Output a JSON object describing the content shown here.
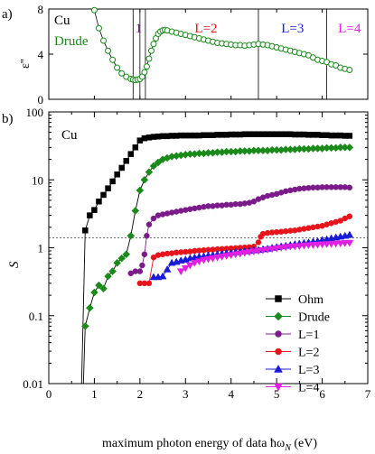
{
  "chart_data": [
    {
      "panel_label": "a)",
      "type": "line",
      "material_label": "Cu",
      "legend": [
        "Drude"
      ],
      "ylabel": "ε''",
      "xlim": [
        0,
        7
      ],
      "ylim": [
        0,
        8
      ],
      "yticks": [
        "0",
        "4",
        "8"
      ],
      "series": [
        {
          "name": "Drude",
          "color": "#1a8a1a",
          "x": [
            1.0,
            1.1,
            1.2,
            1.3,
            1.4,
            1.5,
            1.6,
            1.7,
            1.8,
            1.85,
            1.9,
            1.95,
            2.0,
            2.05,
            2.1,
            2.15,
            2.2,
            2.25,
            2.3,
            2.35,
            2.4,
            2.45,
            2.5,
            2.55,
            2.6,
            2.7,
            2.8,
            2.9,
            3.0,
            3.1,
            3.2,
            3.3,
            3.4,
            3.5,
            3.6,
            3.7,
            3.8,
            3.9,
            4.0,
            4.1,
            4.2,
            4.3,
            4.4,
            4.5,
            4.6,
            4.7,
            4.8,
            4.9,
            5.0,
            5.1,
            5.2,
            5.3,
            5.4,
            5.5,
            5.6,
            5.7,
            5.8,
            5.9,
            6.0,
            6.1,
            6.2,
            6.3,
            6.4,
            6.5,
            6.6
          ],
          "y": [
            7.9,
            6.3,
            5.2,
            4.3,
            3.5,
            2.8,
            2.3,
            2.0,
            1.8,
            1.75,
            1.7,
            1.75,
            1.8,
            2.0,
            2.4,
            2.9,
            3.6,
            4.3,
            4.9,
            5.4,
            5.8,
            6.0,
            6.1,
            6.15,
            6.1,
            6.0,
            5.9,
            5.8,
            5.7,
            5.6,
            5.5,
            5.4,
            5.3,
            5.2,
            5.1,
            5.0,
            4.95,
            4.9,
            4.85,
            4.8,
            4.8,
            4.75,
            4.8,
            4.85,
            4.9,
            4.85,
            4.8,
            4.7,
            4.6,
            4.5,
            4.4,
            4.3,
            4.2,
            4.1,
            4.0,
            3.9,
            3.7,
            3.5,
            3.4,
            3.3,
            3.1,
            3.0,
            2.8,
            2.7,
            2.6
          ]
        }
      ],
      "vlines": [
        1.85,
        2.0,
        2.12,
        4.6,
        6.1
      ],
      "region_labels": [
        {
          "text": "1",
          "x": 1.97,
          "color": "#7b1b8a"
        },
        {
          "text": "L=2",
          "x": 3.45,
          "color": "#e8141c"
        },
        {
          "text": "L=3",
          "x": 5.35,
          "color": "#1a1adb"
        },
        {
          "text": "L=4",
          "x": 6.6,
          "color": "#e020e0"
        }
      ]
    },
    {
      "panel_label": "b)",
      "type": "line",
      "material_label": "Cu",
      "xlabel": "maximum photon energy of data ħω",
      "xlabel_sub": "N",
      "xlabel_unit": " (eV)",
      "ylabel": "S",
      "xlim": [
        0,
        7
      ],
      "ylim": [
        0.01,
        100
      ],
      "yscale": "log",
      "xticks": [
        "0",
        "1",
        "2",
        "3",
        "4",
        "5",
        "6",
        "7"
      ],
      "yticks": [
        "0.01",
        "0.1",
        "1",
        "10",
        "100"
      ],
      "hline": 1.4,
      "legend_position": "bottom-right",
      "series": [
        {
          "name": "Ohm",
          "color": "#000000",
          "marker": "square",
          "x": [
            0.8,
            0.9,
            1.0,
            1.1,
            1.2,
            1.3,
            1.4,
            1.5,
            1.6,
            1.7,
            1.8,
            1.9,
            2.0,
            2.1,
            2.2,
            2.3,
            2.4,
            2.5,
            2.6,
            2.7,
            2.8,
            2.9,
            3.0,
            3.1,
            3.2,
            3.3,
            3.4,
            3.5,
            3.6,
            3.7,
            3.8,
            3.9,
            4.0,
            4.1,
            4.2,
            4.3,
            4.4,
            4.5,
            4.6,
            4.7,
            4.8,
            4.9,
            5.0,
            5.1,
            5.2,
            5.3,
            5.4,
            5.5,
            5.6,
            5.7,
            5.8,
            5.9,
            6.0,
            6.1,
            6.2,
            6.3,
            6.4,
            6.5,
            6.6
          ],
          "y": [
            1.8,
            3.0,
            3.6,
            4.8,
            6.0,
            7.5,
            9.5,
            12.0,
            15.0,
            19.0,
            24.0,
            30.0,
            38.0,
            41.0,
            42.0,
            43.0,
            43.5,
            44.0,
            44.0,
            44.5,
            44.5,
            45.0,
            45.0,
            45.0,
            45.0,
            45.0,
            45.5,
            45.5,
            45.5,
            46.0,
            46.0,
            46.0,
            46.5,
            46.5,
            46.5,
            47.0,
            47.0,
            47.0,
            47.0,
            47.0,
            47.0,
            47.0,
            47.0,
            47.0,
            47.0,
            47.0,
            46.5,
            46.5,
            46.5,
            46.0,
            46.0,
            46.0,
            45.5,
            45.5,
            45.0,
            45.0,
            45.0,
            44.5,
            44.5
          ]
        },
        {
          "name": "Drude",
          "color": "#1a8a1a",
          "marker": "diamond",
          "x": [
            0.8,
            0.9,
            1.0,
            1.1,
            1.2,
            1.3,
            1.4,
            1.5,
            1.6,
            1.7,
            1.8,
            1.9,
            2.0,
            2.1,
            2.2,
            2.3,
            2.4,
            2.5,
            2.6,
            2.7,
            2.8,
            2.9,
            3.0,
            3.1,
            3.2,
            3.3,
            3.4,
            3.5,
            3.6,
            3.7,
            3.8,
            3.9,
            4.0,
            4.1,
            4.2,
            4.3,
            4.4,
            4.5,
            4.6,
            4.7,
            4.8,
            4.9,
            5.0,
            5.1,
            5.2,
            5.3,
            5.4,
            5.5,
            5.6,
            5.7,
            5.8,
            5.9,
            6.0,
            6.1,
            6.2,
            6.3,
            6.4,
            6.5,
            6.6
          ],
          "y": [
            0.07,
            0.13,
            0.22,
            0.28,
            0.25,
            0.38,
            0.45,
            0.6,
            0.7,
            0.8,
            1.5,
            3.5,
            7.0,
            10.0,
            13.0,
            16.0,
            18.0,
            20.0,
            21.0,
            22.0,
            22.5,
            23.0,
            23.5,
            24.0,
            24.0,
            24.5,
            24.5,
            25.0,
            25.0,
            25.5,
            25.5,
            26.0,
            26.0,
            26.0,
            26.5,
            26.5,
            26.5,
            27.0,
            27.0,
            27.0,
            27.0,
            27.5,
            27.5,
            27.5,
            28.0,
            28.0,
            28.0,
            28.5,
            28.5,
            28.5,
            29.0,
            29.0,
            29.0,
            29.5,
            29.5,
            29.5,
            30.0,
            30.0,
            30.0
          ]
        },
        {
          "name": "L=1",
          "color": "#7b1b8a",
          "marker": "circle",
          "x": [
            1.8,
            1.9,
            2.0,
            2.05,
            2.1,
            2.15,
            2.2,
            2.3,
            2.4,
            2.5,
            2.6,
            2.7,
            2.8,
            2.9,
            3.0,
            3.1,
            3.2,
            3.3,
            3.4,
            3.5,
            3.6,
            3.7,
            3.8,
            3.9,
            4.0,
            4.1,
            4.2,
            4.3,
            4.4,
            4.5,
            4.6,
            4.7,
            4.8,
            4.9,
            5.0,
            5.1,
            5.2,
            5.3,
            5.4,
            5.5,
            5.6,
            5.7,
            5.8,
            5.9,
            6.0,
            6.1,
            6.2,
            6.3,
            6.4,
            6.5,
            6.6
          ],
          "y": [
            0.42,
            0.45,
            0.45,
            0.55,
            0.8,
            1.5,
            2.2,
            2.7,
            3.0,
            3.1,
            3.2,
            3.3,
            3.4,
            3.5,
            3.6,
            3.7,
            3.8,
            3.9,
            4.0,
            4.1,
            4.1,
            4.2,
            4.2,
            4.3,
            4.3,
            4.4,
            4.4,
            4.5,
            4.6,
            4.8,
            5.2,
            5.5,
            5.8,
            6.0,
            6.2,
            6.5,
            6.8,
            7.0,
            7.2,
            7.4,
            7.5,
            7.6,
            7.7,
            7.7,
            7.8,
            7.8,
            7.8,
            7.8,
            7.8,
            7.8,
            7.7
          ]
        },
        {
          "name": "L=2",
          "color": "#e8141c",
          "marker": "circle",
          "x": [
            2.0,
            2.1,
            2.2,
            2.3,
            2.4,
            2.5,
            2.6,
            2.7,
            2.8,
            2.9,
            3.0,
            3.1,
            3.2,
            3.3,
            3.4,
            3.5,
            3.6,
            3.7,
            3.8,
            3.9,
            4.0,
            4.1,
            4.2,
            4.3,
            4.4,
            4.5,
            4.6,
            4.65,
            4.7,
            4.8,
            4.9,
            5.0,
            5.1,
            5.2,
            5.3,
            5.4,
            5.5,
            5.6,
            5.7,
            5.8,
            5.9,
            6.0,
            6.1,
            6.2,
            6.3,
            6.4,
            6.5,
            6.6
          ],
          "y": [
            0.3,
            0.3,
            0.3,
            0.72,
            0.78,
            0.8,
            0.82,
            0.83,
            0.85,
            0.86,
            0.87,
            0.88,
            0.9,
            0.91,
            0.92,
            0.93,
            0.94,
            0.95,
            0.96,
            0.97,
            0.98,
            0.99,
            1.0,
            1.01,
            1.02,
            1.04,
            1.2,
            1.45,
            1.6,
            1.65,
            1.68,
            1.7,
            1.72,
            1.75,
            1.78,
            1.8,
            1.85,
            1.9,
            1.95,
            2.0,
            2.05,
            2.1,
            2.2,
            2.3,
            2.4,
            2.5,
            2.7,
            2.9
          ]
        },
        {
          "name": "L=3",
          "color": "#1a1adb",
          "marker": "triangle-up",
          "x": [
            2.3,
            2.4,
            2.5,
            2.6,
            2.7,
            2.8,
            2.9,
            3.0,
            3.1,
            3.2,
            3.3,
            3.4,
            3.5,
            3.6,
            3.7,
            3.8,
            3.9,
            4.0,
            4.1,
            4.2,
            4.3,
            4.4,
            4.5,
            4.6,
            4.7,
            4.8,
            4.9,
            5.0,
            5.1,
            5.2,
            5.3,
            5.4,
            5.5,
            5.6,
            5.7,
            5.8,
            5.9,
            6.0,
            6.1,
            6.2,
            6.3,
            6.4,
            6.5,
            6.6
          ],
          "y": [
            0.37,
            0.37,
            0.38,
            0.48,
            0.6,
            0.62,
            0.65,
            0.67,
            0.7,
            0.72,
            0.74,
            0.75,
            0.77,
            0.78,
            0.8,
            0.82,
            0.83,
            0.85,
            0.86,
            0.88,
            0.89,
            0.9,
            0.92,
            0.93,
            0.95,
            0.97,
            1.0,
            1.02,
            1.05,
            1.07,
            1.1,
            1.13,
            1.15,
            1.18,
            1.2,
            1.23,
            1.25,
            1.3,
            1.33,
            1.38,
            1.42,
            1.46,
            1.5,
            1.55
          ]
        },
        {
          "name": "L=4",
          "color": "#e020e0",
          "marker": "triangle-down",
          "x": [
            2.9,
            3.0,
            3.1,
            3.2,
            3.3,
            3.4,
            3.5,
            3.6,
            3.7,
            3.8,
            3.9,
            4.0,
            4.1,
            4.2,
            4.3,
            4.4,
            4.5,
            4.6,
            4.7,
            4.8,
            4.9,
            5.0,
            5.1,
            5.2,
            5.3,
            5.4,
            5.5,
            5.6,
            5.7,
            5.8,
            5.9,
            6.0,
            6.1,
            6.2,
            6.3,
            6.4,
            6.5,
            6.6
          ],
          "y": [
            0.45,
            0.5,
            0.55,
            0.6,
            0.63,
            0.66,
            0.68,
            0.7,
            0.72,
            0.74,
            0.76,
            0.78,
            0.8,
            0.82,
            0.84,
            0.86,
            0.88,
            0.9,
            0.92,
            0.94,
            0.96,
            0.98,
            1.0,
            1.02,
            1.04,
            1.05,
            1.06,
            1.08,
            1.09,
            1.1,
            1.11,
            1.12,
            1.13,
            1.14,
            1.15,
            1.16,
            1.17,
            1.18
          ]
        }
      ]
    }
  ]
}
